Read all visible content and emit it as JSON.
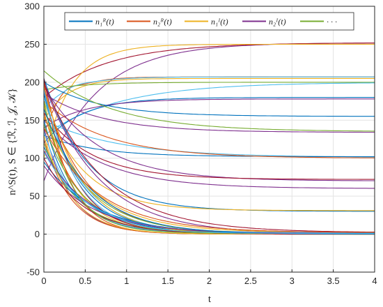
{
  "chart_data": {
    "type": "line",
    "xlabel": "t",
    "ylabel": "n^S(t), S ∈ {ℛ, ℐ, 𝒥, 𝒦}",
    "xlim": [
      0,
      4
    ],
    "ylim": [
      -50,
      300
    ],
    "x_ticks": [
      "0",
      "0.5",
      "1",
      "1.5",
      "2",
      "2.5",
      "3",
      "3.5",
      "4"
    ],
    "y_ticks": [
      "-50",
      "0",
      "50",
      "100",
      "150",
      "200",
      "250",
      "300"
    ],
    "grid": true,
    "legend_position": "top",
    "legend": [
      {
        "text": "n₁ᴿ(t)",
        "color": "#0072BD"
      },
      {
        "text": "n₂ᴿ(t)",
        "color": "#D95319"
      },
      {
        "text": "n₁ᴵ(t)",
        "color": "#EDB120"
      },
      {
        "text": "n₂ᴵ(t)",
        "color": "#7E2F8E"
      },
      {
        "text": "· · ·",
        "color": "#77AC30"
      }
    ],
    "palette": [
      "#0072BD",
      "#D95319",
      "#EDB120",
      "#7E2F8E",
      "#77AC30",
      "#4DBEEE",
      "#A2142F"
    ],
    "steady_states": [
      252,
      250,
      207,
      205,
      200,
      180,
      135,
      102,
      100,
      70,
      60,
      30,
      2,
      1,
      0
    ],
    "series": [
      {
        "color": "#7E2F8E",
        "start": 70,
        "end": 252,
        "rate": 1.6
      },
      {
        "color": "#A2142F",
        "start": 180,
        "end": 252,
        "rate": 1.3
      },
      {
        "color": "#EDB120",
        "start": 100,
        "end": 250,
        "rate": 3.0
      },
      {
        "color": "#D95319",
        "start": 130,
        "end": 207,
        "rate": 4.0,
        "peak": 222,
        "peak_t": 0.25
      },
      {
        "color": "#4DBEEE",
        "start": 165,
        "end": 207,
        "rate": 3.0,
        "peak": 210,
        "peak_t": 0.4
      },
      {
        "color": "#EDB120",
        "start": 150,
        "end": 205,
        "rate": 3.5
      },
      {
        "color": "#77AC30",
        "start": 190,
        "end": 200,
        "rate": 2.0
      },
      {
        "color": "#4DBEEE",
        "start": 130,
        "end": 200,
        "rate": 1.1
      },
      {
        "color": "#0072BD",
        "start": 120,
        "end": 180,
        "rate": 2.2
      },
      {
        "color": "#7E2F8E",
        "start": 140,
        "end": 178,
        "rate": 2.0
      },
      {
        "color": "#0072BD",
        "start": 200,
        "end": 155,
        "rate": 1.5
      },
      {
        "color": "#77AC30",
        "start": 215,
        "end": 135,
        "rate": 1.2
      },
      {
        "color": "#7E2F8E",
        "start": 185,
        "end": 134,
        "rate": 1.4
      },
      {
        "color": "#4DBEEE",
        "start": 150,
        "end": 101,
        "rate": 1.1
      },
      {
        "color": "#0072BD",
        "start": 130,
        "end": 102,
        "rate": 1.6
      },
      {
        "color": "#D95319",
        "start": 175,
        "end": 100,
        "rate": 1.3
      },
      {
        "color": "#7E2F8E",
        "start": 195,
        "end": 70,
        "rate": 1.5
      },
      {
        "color": "#A2142F",
        "start": 160,
        "end": 72,
        "rate": 1.7
      },
      {
        "color": "#7E2F8E",
        "start": 150,
        "end": 60,
        "rate": 1.4
      },
      {
        "color": "#0072BD",
        "start": 205,
        "end": 30,
        "rate": 1.9
      },
      {
        "color": "#EDB120",
        "start": 175,
        "end": 31,
        "rate": 2.1
      },
      {
        "color": "#7E2F8E",
        "start": 198,
        "end": 0,
        "rate": 1.5
      },
      {
        "color": "#D95319",
        "start": 190,
        "end": 1,
        "rate": 2.0
      },
      {
        "color": "#0072BD",
        "start": 185,
        "end": 2,
        "rate": 2.3
      },
      {
        "color": "#EDB120",
        "start": 170,
        "end": 0,
        "rate": 2.6
      },
      {
        "color": "#77AC30",
        "start": 165,
        "end": 1,
        "rate": 1.9
      },
      {
        "color": "#4DBEEE",
        "start": 180,
        "end": 0,
        "rate": 2.1
      },
      {
        "color": "#A2142F",
        "start": 200,
        "end": 2,
        "rate": 1.4
      },
      {
        "color": "#D95319",
        "start": 160,
        "end": 0,
        "rate": 2.4
      },
      {
        "color": "#0072BD",
        "start": 150,
        "end": 1,
        "rate": 2.8
      },
      {
        "color": "#7E2F8E",
        "start": 140,
        "end": 0,
        "rate": 3.1
      },
      {
        "color": "#EDB120",
        "start": 155,
        "end": 2,
        "rate": 1.7
      },
      {
        "color": "#77AC30",
        "start": 145,
        "end": 0,
        "rate": 2.2
      },
      {
        "color": "#4DBEEE",
        "start": 135,
        "end": 1,
        "rate": 2.6
      },
      {
        "color": "#D95319",
        "start": 125,
        "end": 0,
        "rate": 3.0
      },
      {
        "color": "#0072BD",
        "start": 115,
        "end": 1,
        "rate": 2.0
      },
      {
        "color": "#7E2F8E",
        "start": 110,
        "end": 0,
        "rate": 1.8
      },
      {
        "color": "#A2142F",
        "start": 205,
        "end": 1,
        "rate": 2.7
      },
      {
        "color": "#EDB120",
        "start": 195,
        "end": 0,
        "rate": 2.2
      },
      {
        "color": "#77AC30",
        "start": 120,
        "end": 2,
        "rate": 2.4
      },
      {
        "color": "#D95319",
        "start": 200,
        "end": 0,
        "rate": 3.3
      },
      {
        "color": "#0072BD",
        "start": 95,
        "end": 0,
        "rate": 1.6
      },
      {
        "color": "#4DBEEE",
        "start": 108,
        "end": 2,
        "rate": 1.9
      },
      {
        "color": "#7E2F8E",
        "start": 90,
        "end": 1,
        "rate": 1.7
      },
      {
        "color": "#EDB120",
        "start": 130,
        "end": 0,
        "rate": 2.9
      },
      {
        "color": "#A2142F",
        "start": 100,
        "end": 0,
        "rate": 2.1
      },
      {
        "color": "#77AC30",
        "start": 175,
        "end": 1,
        "rate": 3.0
      },
      {
        "color": "#0072BD",
        "start": 165,
        "end": 0,
        "rate": 1.8
      },
      {
        "color": "#D95319",
        "start": 140,
        "end": 2,
        "rate": 1.5
      },
      {
        "color": "#4DBEEE",
        "start": 190,
        "end": 1,
        "rate": 2.5
      }
    ]
  }
}
